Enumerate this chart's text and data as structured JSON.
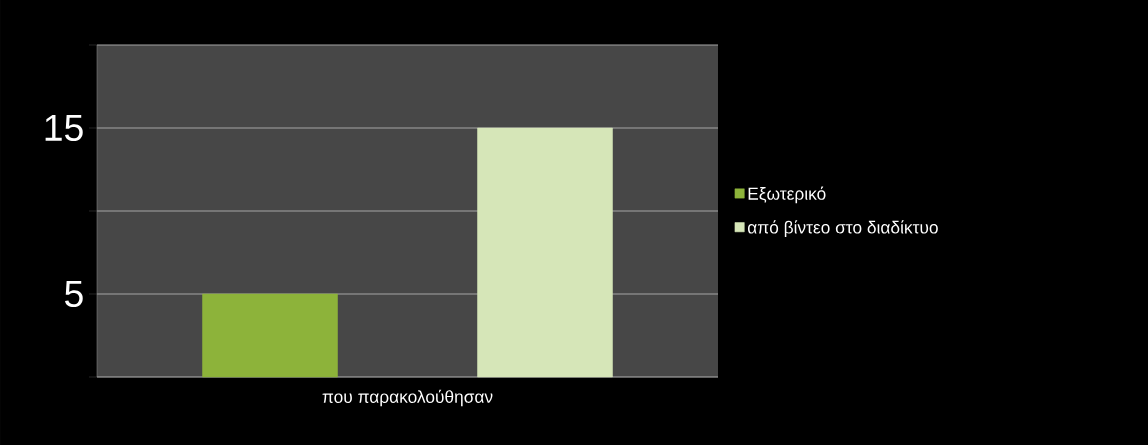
{
  "chart_data": {
    "type": "bar",
    "categories": [
      "που παρακολούθησαν"
    ],
    "series": [
      {
        "name": "Εξωτερικό",
        "color": "#8db33a",
        "values": [
          5
        ]
      },
      {
        "name": "από βίντεο στο διαδίκτυο",
        "color": "#d6e6b8",
        "values": [
          15
        ]
      }
    ],
    "ylim": [
      0,
      20
    ],
    "yticks": [
      {
        "value": 0,
        "label": null
      },
      5,
      {
        "value": 10,
        "label": null
      },
      15,
      {
        "value": 20,
        "label": null
      }
    ],
    "grid": "y",
    "legend": "right"
  }
}
